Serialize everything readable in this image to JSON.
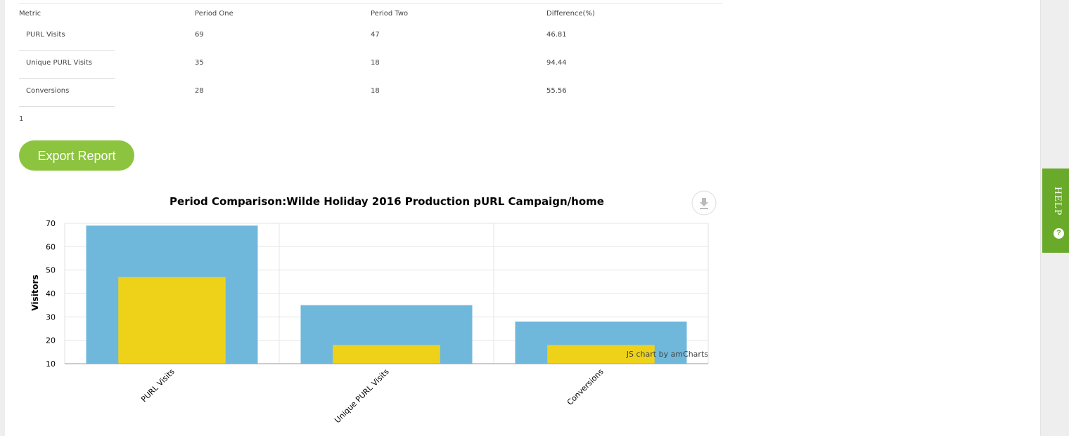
{
  "table": {
    "headers": [
      "Metric",
      "Period One",
      "Period Two",
      "Difference(%)"
    ],
    "rows": [
      [
        "PURL Visits",
        "69",
        "47",
        "46.81"
      ],
      [
        "Unique PURL Visits",
        "35",
        "18",
        "94.44"
      ],
      [
        "Conversions",
        "28",
        "18",
        "55.56"
      ]
    ],
    "page": "1"
  },
  "export_button": "Export Report",
  "help": {
    "label": "HELP",
    "icon": "question-circle-icon",
    "color": "#6aaa2a"
  },
  "download_icon": "download-icon",
  "colors": {
    "period_one": "#6fb8dc",
    "period_two": "#eed21a",
    "button": "#8cc43f"
  },
  "credit": "JS chart by amCharts",
  "chart_data": {
    "type": "bar",
    "title": "Period Comparison:Wilde Holiday 2016 Production pURL Campaign/home",
    "ylabel": "Visitors",
    "xlabel": "",
    "categories": [
      "PURL Visits",
      "Unique PURL Visits",
      "Conversions"
    ],
    "series": [
      {
        "values": [
          69,
          35,
          28
        ],
        "color": "#6fb8dc"
      },
      {
        "values": [
          47,
          18,
          18
        ],
        "color": "#eed21a"
      }
    ],
    "ylim": [
      10,
      70
    ],
    "yticks": [
      "10",
      "20",
      "30",
      "40",
      "50",
      "60",
      "70"
    ],
    "grid": true,
    "legend": "none"
  }
}
